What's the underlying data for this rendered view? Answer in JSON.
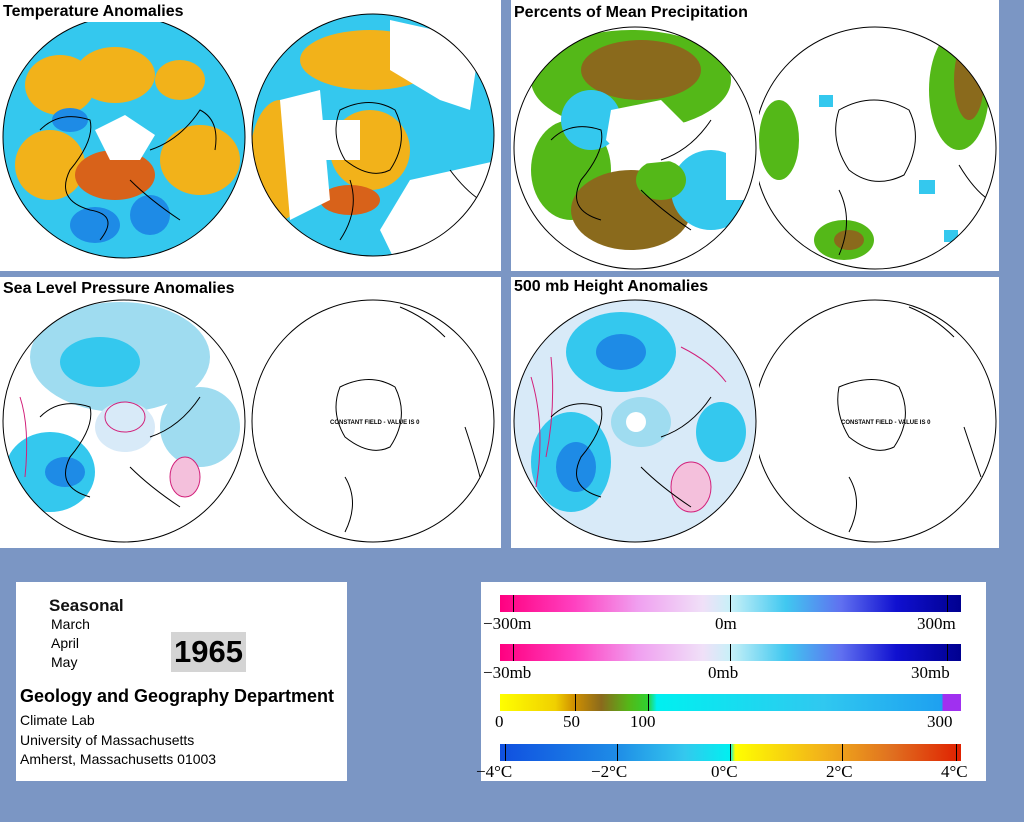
{
  "panels": {
    "temperature": {
      "title": "Temperature Anomalies"
    },
    "precipitation": {
      "title": "Percents of Mean Precipitation"
    },
    "slp": {
      "title": "Sea Level Pressure Anomalies",
      "south_note": "CONSTANT FIELD - VALUE IS 0"
    },
    "height500": {
      "title": "500 mb Height Anomalies",
      "south_note": "CONSTANT FIELD - VALUE IS 0"
    }
  },
  "info": {
    "period_label": "Seasonal",
    "months": [
      "March",
      "April",
      "May"
    ],
    "year": "1965",
    "department": "Geology and Geography Department",
    "lines": [
      "Climate Lab",
      "University of Massachusetts",
      "Amherst, Massachusetts 01003"
    ]
  },
  "legend": {
    "height": {
      "labels": [
        "−300m",
        "0m",
        "300m"
      ]
    },
    "pressure": {
      "labels": [
        "−30mb",
        "0mb",
        "30mb"
      ]
    },
    "precip": {
      "labels": [
        "0",
        "50",
        "100",
        "300"
      ]
    },
    "temp": {
      "labels": [
        "−4°C",
        "−2°C",
        "0°C",
        "2°C",
        "4°C"
      ]
    }
  },
  "colors": {
    "background": "#7b96c4",
    "cold": "#1e8be6",
    "cool": "#34c8ee",
    "warm": "#f2b21a",
    "hot": "#d8621a",
    "dry": "#8a6a1c",
    "wet": "#54b818",
    "negative_contour": "#d2207a",
    "positive_fill": "#2040c8"
  }
}
